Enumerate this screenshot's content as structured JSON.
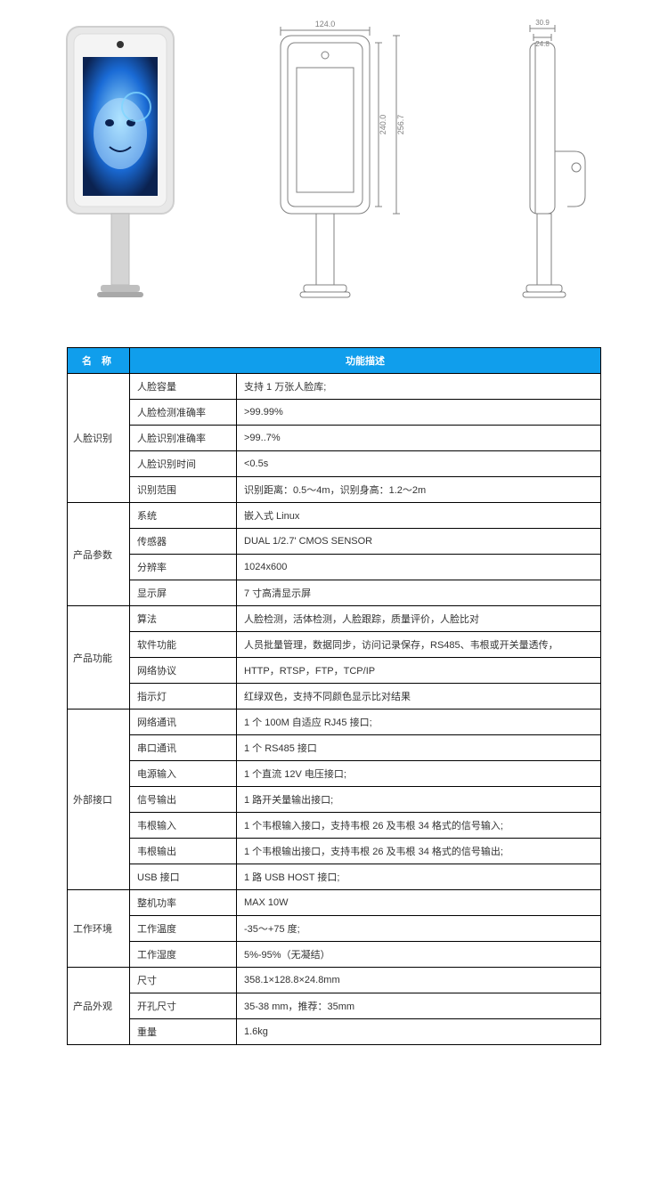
{
  "diagrams": {
    "front_dim_width": "124.0",
    "front_dim_height_inner": "240.0",
    "front_dim_height_outer": "256.7",
    "side_dim_top_depth": "30.9",
    "side_dim_top_inner": "24.8",
    "render_colors": {
      "device_body": "#e8e8e8",
      "device_frame": "#d0d0d0",
      "screen_glow": "#1a4a9e",
      "screen_face": "#5fb8e6",
      "line": "#808080",
      "dim_text": "#808080"
    }
  },
  "table": {
    "header_name": "名 称",
    "header_desc": "功能描述",
    "header_bg": "#109eec",
    "header_fg": "#ffffff",
    "border_color": "#000000",
    "sections": [
      {
        "name": "人脸识别",
        "rows": [
          {
            "param": "人脸容量",
            "value": "支持 1 万张人脸库;"
          },
          {
            "param": "人脸检测准确率",
            "value": ">99.99%"
          },
          {
            "param": "人脸识别准确率",
            "value": ">99..7%"
          },
          {
            "param": "人脸识别时间",
            "value": "<0.5s"
          },
          {
            "param": "识别范围",
            "value": "识别距离：0.5～4m，识别身高：1.2～2m"
          }
        ]
      },
      {
        "name": "产品参数",
        "rows": [
          {
            "param": "系统",
            "value": "嵌入式 Linux"
          },
          {
            "param": "传感器",
            "value": "DUAL 1/2.7'  CMOS SENSOR"
          },
          {
            "param": "分辨率",
            "value": "1024x600"
          },
          {
            "param": "显示屏",
            "value": "7 寸高清显示屏"
          }
        ]
      },
      {
        "name": "产品功能",
        "rows": [
          {
            "param": "算法",
            "value": "人脸检测，活体检测，人脸跟踪，质量评价，人脸比对"
          },
          {
            "param": "软件功能",
            "value": "人员批量管理，数据同步，访问记录保存，RS485、韦根或开关量透传，"
          },
          {
            "param": "网络协议",
            "value": "HTTP，RTSP，FTP，TCP/IP"
          },
          {
            "param": "指示灯",
            "value": "红绿双色，支持不同颜色显示比对结果"
          }
        ]
      },
      {
        "name": "外部接口",
        "rows": [
          {
            "param": "网络通讯",
            "value": "1 个 100M 自适应 RJ45 接口;"
          },
          {
            "param": "串口通讯",
            "value": "1 个 RS485 接口"
          },
          {
            "param": "电源输入",
            "value": "1 个直流 12V 电压接口;"
          },
          {
            "param": "信号输出",
            "value": "1 路开关量输出接口;"
          },
          {
            "param": "韦根输入",
            "value": "1 个韦根输入接口，支持韦根 26 及韦根 34 格式的信号输入;"
          },
          {
            "param": "韦根输出",
            "value": "1 个韦根输出接口，支持韦根 26 及韦根 34 格式的信号输出;"
          },
          {
            "param": "USB 接口",
            "value": "1 路 USB HOST 接口;"
          }
        ]
      },
      {
        "name": "工作环境",
        "rows": [
          {
            "param": "整机功率",
            "value": "MAX 10W"
          },
          {
            "param": "工作温度",
            "value": "-35～+75 度;"
          },
          {
            "param": "工作湿度",
            "value": "5%-95%（无凝结）"
          }
        ]
      },
      {
        "name": "产品外观",
        "rows": [
          {
            "param": "尺寸",
            "value": "358.1×128.8×24.8mm"
          },
          {
            "param": "开孔尺寸",
            "value": "35-38 mm，推荐：35mm"
          },
          {
            "param": "重量",
            "value": "1.6kg"
          }
        ]
      }
    ]
  }
}
